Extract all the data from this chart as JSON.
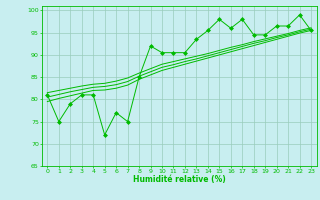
{
  "x": [
    0,
    1,
    2,
    3,
    4,
    5,
    6,
    7,
    8,
    9,
    10,
    11,
    12,
    13,
    14,
    15,
    16,
    17,
    18,
    19,
    20,
    21,
    22,
    23
  ],
  "y_main": [
    81,
    75,
    79,
    81,
    81,
    72,
    77,
    75,
    85,
    92,
    90.5,
    90.5,
    90.5,
    93.5,
    95.5,
    98,
    96,
    98,
    94.5,
    94.5,
    96.5,
    96.5,
    99,
    95.5
  ],
  "y_reg1": [
    79.5,
    80.2,
    80.8,
    81.4,
    82.0,
    82.1,
    82.5,
    83.2,
    84.5,
    85.5,
    86.5,
    87.2,
    87.9,
    88.6,
    89.3,
    90.0,
    90.7,
    91.4,
    92.1,
    92.8,
    93.5,
    94.2,
    94.9,
    95.5
  ],
  "y_reg2": [
    80.5,
    81.1,
    81.7,
    82.2,
    82.7,
    82.9,
    83.3,
    84.0,
    85.2,
    86.2,
    87.2,
    87.8,
    88.5,
    89.1,
    89.8,
    90.5,
    91.2,
    91.9,
    92.6,
    93.2,
    93.9,
    94.5,
    95.2,
    95.8
  ],
  "y_reg3": [
    81.5,
    82.0,
    82.5,
    83.0,
    83.4,
    83.6,
    84.1,
    84.8,
    85.9,
    86.9,
    87.9,
    88.5,
    89.1,
    89.7,
    90.3,
    91.0,
    91.7,
    92.3,
    93.0,
    93.6,
    94.2,
    94.8,
    95.5,
    96.1
  ],
  "line_color": "#00BB00",
  "bg_color": "#C8EEF0",
  "grid_color": "#99CCBB",
  "xlabel": "Humidité relative (%)",
  "ylim": [
    65,
    101
  ],
  "xlim": [
    -0.5,
    23.5
  ],
  "yticks": [
    65,
    70,
    75,
    80,
    85,
    90,
    95,
    100
  ],
  "xticks": [
    0,
    1,
    2,
    3,
    4,
    5,
    6,
    7,
    8,
    9,
    10,
    11,
    12,
    13,
    14,
    15,
    16,
    17,
    18,
    19,
    20,
    21,
    22,
    23
  ]
}
